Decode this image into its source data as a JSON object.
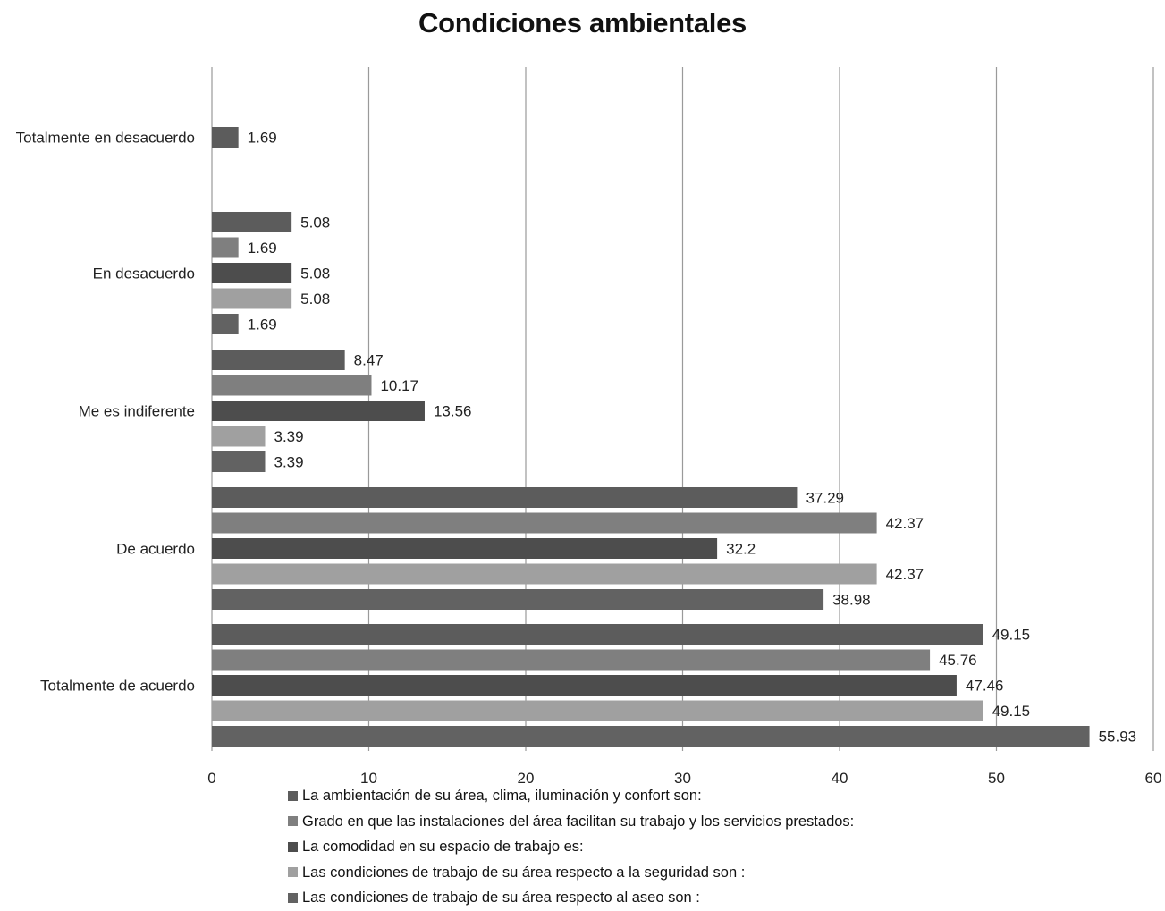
{
  "chart_data": {
    "type": "bar",
    "orientation": "horizontal",
    "title": "Condiciones ambientales",
    "categories": [
      "Totalmente en desacuerdo",
      "En desacuerdo",
      "Me es indiferente",
      "De acuerdo",
      "Totalmente de acuerdo"
    ],
    "series": [
      {
        "name": "La ambientación de su área, clima, iluminación y confort son:",
        "color": "#5c5c5c",
        "values": [
          1.69,
          5.08,
          8.47,
          37.29,
          49.15
        ]
      },
      {
        "name": "Grado en que las instalaciones del área facilitan su trabajo y los servicios prestados:",
        "color": "#7f7f7f",
        "values": [
          null,
          1.69,
          10.17,
          42.37,
          45.76
        ]
      },
      {
        "name": "La comodidad en su espacio de trabajo es:",
        "color": "#4d4d4d",
        "values": [
          null,
          5.08,
          13.56,
          32.2,
          47.46
        ]
      },
      {
        "name": "Las condiciones de trabajo de su área respecto a la seguridad son :",
        "color": "#a0a0a0",
        "values": [
          null,
          5.08,
          3.39,
          42.37,
          49.15
        ]
      },
      {
        "name": "Las condiciones de trabajo de su área respecto al aseo son :",
        "color": "#626262",
        "values": [
          null,
          1.69,
          3.39,
          38.98,
          55.93
        ]
      }
    ],
    "xlim": [
      0,
      60
    ],
    "xticks": [
      0,
      10,
      20,
      30,
      40,
      50,
      60
    ],
    "grid": true,
    "legend_position": "bottom"
  }
}
